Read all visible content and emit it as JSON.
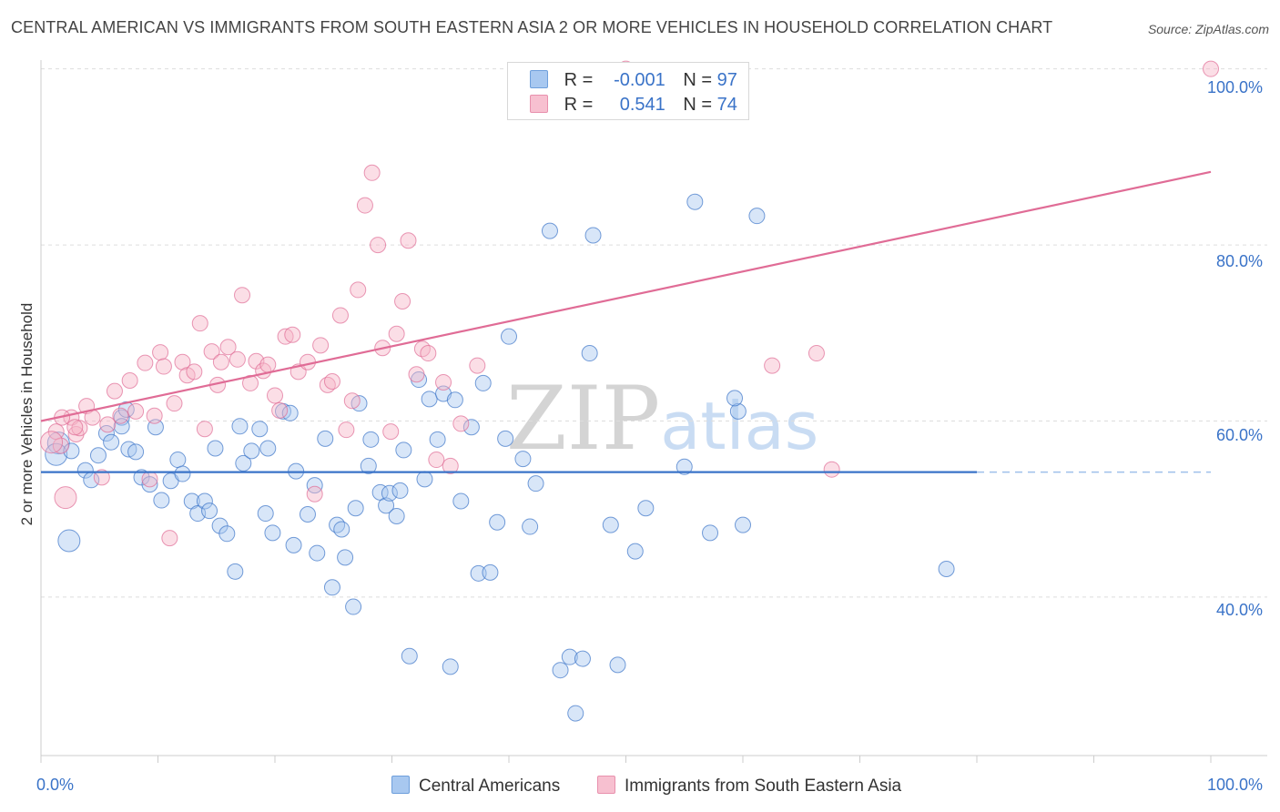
{
  "title": "CENTRAL AMERICAN VS IMMIGRANTS FROM SOUTH EASTERN ASIA 2 OR MORE VEHICLES IN HOUSEHOLD CORRELATION CHART",
  "source": "Source: ZipAtlas.com",
  "watermark": {
    "zip": "ZIP",
    "atlas": "atlas"
  },
  "legend": {
    "r_label": "R =",
    "n_label": "N =",
    "rows": [
      {
        "r": "-0.001",
        "n": "97",
        "color": "#a8c8f0"
      },
      {
        "r": "0.541",
        "n": "74",
        "color": "#f7b6c8"
      }
    ]
  },
  "chart_data": {
    "type": "scatter",
    "title": "CENTRAL AMERICAN VS IMMIGRANTS FROM SOUTH EASTERN ASIA 2 OR MORE VEHICLES IN HOUSEHOLD CORRELATION CHART",
    "xlabel": "",
    "ylabel": "2 or more Vehicles in Household",
    "xlim": [
      0,
      100
    ],
    "ylim": [
      22,
      101
    ],
    "x_tick_labels": [
      "0.0%",
      "100.0%"
    ],
    "y_tick_labels": [
      "40.0%",
      "60.0%",
      "80.0%",
      "100.0%"
    ],
    "y_ticks": [
      40,
      60,
      80,
      100
    ],
    "grid": true,
    "legend_position": "top-center",
    "series": [
      {
        "name": "Central Americans",
        "color": "#3a73c8",
        "fill": "#a8c8f0",
        "trend": {
          "x": [
            0,
            80
          ],
          "y": [
            54.2,
            54.2
          ],
          "dashed_to": 100
        },
        "points": [
          [
            1.5,
            57.5
          ],
          [
            1.3,
            56.2
          ],
          [
            2.4,
            46.4
          ],
          [
            2.6,
            56.6
          ],
          [
            3.8,
            54.4
          ],
          [
            4.3,
            53.3
          ],
          [
            4.9,
            56.1
          ],
          [
            5.6,
            58.6
          ],
          [
            6.0,
            57.6
          ],
          [
            6.9,
            60.4
          ],
          [
            6.9,
            59.4
          ],
          [
            7.3,
            61.3
          ],
          [
            7.5,
            56.8
          ],
          [
            8.1,
            56.5
          ],
          [
            8.6,
            53.6
          ],
          [
            9.3,
            52.8
          ],
          [
            9.8,
            59.3
          ],
          [
            10.3,
            51.0
          ],
          [
            11.1,
            53.2
          ],
          [
            11.7,
            55.6
          ],
          [
            12.1,
            54.0
          ],
          [
            12.9,
            50.9
          ],
          [
            13.4,
            49.5
          ],
          [
            14.0,
            50.9
          ],
          [
            14.4,
            49.8
          ],
          [
            14.9,
            56.9
          ],
          [
            15.3,
            48.1
          ],
          [
            15.9,
            47.2
          ],
          [
            16.6,
            42.9
          ],
          [
            17.0,
            59.4
          ],
          [
            17.3,
            55.2
          ],
          [
            18.0,
            56.6
          ],
          [
            18.7,
            59.1
          ],
          [
            19.2,
            49.5
          ],
          [
            19.4,
            56.9
          ],
          [
            19.8,
            47.3
          ],
          [
            20.7,
            61.1
          ],
          [
            21.3,
            60.9
          ],
          [
            21.8,
            54.3
          ],
          [
            21.6,
            45.9
          ],
          [
            22.8,
            49.4
          ],
          [
            23.4,
            52.7
          ],
          [
            23.6,
            45.0
          ],
          [
            24.3,
            58.0
          ],
          [
            24.9,
            41.1
          ],
          [
            25.3,
            48.2
          ],
          [
            25.7,
            47.7
          ],
          [
            26.0,
            44.5
          ],
          [
            26.7,
            38.9
          ],
          [
            27.2,
            62.0
          ],
          [
            28.2,
            57.9
          ],
          [
            28.0,
            54.9
          ],
          [
            29.0,
            51.9
          ],
          [
            29.5,
            50.4
          ],
          [
            29.8,
            51.8
          ],
          [
            30.4,
            49.2
          ],
          [
            30.7,
            52.1
          ],
          [
            31.0,
            56.7
          ],
          [
            31.5,
            33.3
          ],
          [
            32.3,
            64.7
          ],
          [
            32.8,
            53.4
          ],
          [
            33.2,
            62.5
          ],
          [
            33.9,
            57.9
          ],
          [
            34.4,
            63.1
          ],
          [
            35.0,
            32.1
          ],
          [
            35.4,
            62.4
          ],
          [
            35.9,
            50.9
          ],
          [
            36.8,
            59.3
          ],
          [
            37.4,
            42.7
          ],
          [
            37.8,
            64.3
          ],
          [
            38.4,
            42.8
          ],
          [
            39.0,
            48.5
          ],
          [
            39.7,
            58.0
          ],
          [
            40.0,
            69.6
          ],
          [
            41.2,
            55.7
          ],
          [
            41.8,
            48.0
          ],
          [
            42.3,
            52.9
          ],
          [
            44.4,
            31.7
          ],
          [
            45.2,
            33.2
          ],
          [
            43.5,
            81.6
          ],
          [
            45.7,
            26.8
          ],
          [
            46.9,
            67.7
          ],
          [
            46.3,
            33.0
          ],
          [
            47.2,
            81.1
          ],
          [
            48.7,
            48.2
          ],
          [
            49.3,
            32.3
          ],
          [
            50.8,
            45.2
          ],
          [
            51.7,
            50.1
          ],
          [
            55.9,
            84.9
          ],
          [
            57.2,
            47.3
          ],
          [
            59.6,
            61.1
          ],
          [
            60.0,
            48.2
          ],
          [
            61.2,
            83.3
          ],
          [
            77.4,
            43.2
          ],
          [
            59.3,
            62.6
          ],
          [
            55.0,
            54.8
          ],
          [
            26.9,
            50.1
          ]
        ],
        "sizes_large": [
          [
            1.5,
            57.5
          ],
          [
            1.3,
            56.2
          ],
          [
            2.4,
            46.4
          ]
        ]
      },
      {
        "name": "Immigrants from South Eastern Asia",
        "color": "#e06c96",
        "fill": "#f7b6c8",
        "trend": {
          "x": [
            0,
            100
          ],
          "y": [
            60.0,
            88.3
          ]
        },
        "points": [
          [
            1.3,
            58.8
          ],
          [
            1.7,
            57.2
          ],
          [
            2.1,
            51.3
          ],
          [
            2.6,
            60.4
          ],
          [
            3.0,
            58.5
          ],
          [
            3.3,
            59.2
          ],
          [
            3.9,
            61.7
          ],
          [
            4.4,
            60.4
          ],
          [
            5.2,
            53.6
          ],
          [
            5.7,
            59.6
          ],
          [
            6.3,
            63.4
          ],
          [
            6.8,
            60.6
          ],
          [
            7.6,
            64.6
          ],
          [
            8.1,
            61.1
          ],
          [
            8.9,
            66.6
          ],
          [
            9.3,
            53.4
          ],
          [
            9.7,
            60.6
          ],
          [
            10.2,
            67.8
          ],
          [
            10.5,
            66.2
          ],
          [
            11.0,
            46.7
          ],
          [
            11.4,
            62.0
          ],
          [
            12.1,
            66.7
          ],
          [
            12.5,
            65.2
          ],
          [
            13.1,
            65.6
          ],
          [
            13.6,
            71.1
          ],
          [
            14.0,
            59.1
          ],
          [
            14.6,
            67.9
          ],
          [
            15.1,
            64.1
          ],
          [
            15.4,
            66.7
          ],
          [
            16.0,
            68.4
          ],
          [
            16.8,
            67.0
          ],
          [
            17.2,
            74.3
          ],
          [
            17.9,
            64.3
          ],
          [
            18.4,
            66.8
          ],
          [
            19.0,
            65.7
          ],
          [
            19.4,
            66.4
          ],
          [
            20.0,
            62.9
          ],
          [
            20.4,
            61.2
          ],
          [
            20.9,
            69.6
          ],
          [
            21.5,
            69.8
          ],
          [
            22.0,
            65.6
          ],
          [
            22.8,
            66.7
          ],
          [
            23.4,
            51.7
          ],
          [
            23.9,
            68.6
          ],
          [
            24.5,
            64.1
          ],
          [
            24.9,
            64.5
          ],
          [
            25.6,
            72.0
          ],
          [
            26.1,
            59.0
          ],
          [
            26.6,
            62.3
          ],
          [
            27.1,
            74.9
          ],
          [
            27.7,
            84.5
          ],
          [
            28.3,
            88.2
          ],
          [
            28.8,
            80.0
          ],
          [
            29.2,
            68.3
          ],
          [
            29.9,
            58.8
          ],
          [
            30.4,
            69.9
          ],
          [
            30.9,
            73.6
          ],
          [
            31.4,
            80.5
          ],
          [
            32.1,
            65.3
          ],
          [
            32.6,
            68.2
          ],
          [
            33.1,
            67.7
          ],
          [
            33.8,
            55.6
          ],
          [
            34.4,
            64.4
          ],
          [
            35.0,
            54.9
          ],
          [
            35.9,
            59.7
          ],
          [
            50.0,
            100.0
          ],
          [
            37.3,
            66.3
          ],
          [
            62.5,
            66.3
          ],
          [
            66.3,
            67.7
          ],
          [
            67.6,
            54.5
          ],
          [
            100.0,
            100.0
          ],
          [
            1.8,
            60.4
          ],
          [
            2.9,
            59.3
          ],
          [
            0.9,
            57.6
          ]
        ],
        "sizes_large": [
          [
            2.1,
            51.3
          ],
          [
            0.9,
            57.6
          ]
        ]
      }
    ]
  },
  "bottom_legend": [
    "Central Americans",
    "Immigrants from South Eastern Asia"
  ]
}
